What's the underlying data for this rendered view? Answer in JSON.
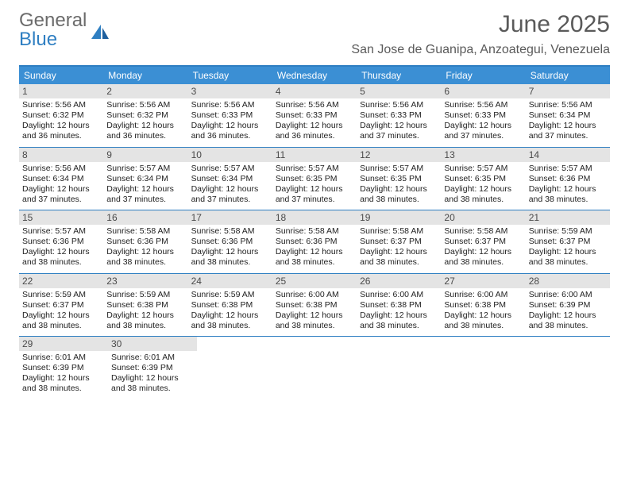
{
  "brand": {
    "top": "General",
    "bottom": "Blue"
  },
  "title": "June 2025",
  "location": "San Jose de Guanipa, Anzoategui, Venezuela",
  "colors": {
    "header_bg": "#3b8fd4",
    "border": "#2f7fc2",
    "daynum_bg": "#e4e4e4",
    "text": "#222222",
    "title_text": "#5a5a5a"
  },
  "weekdays": [
    "Sunday",
    "Monday",
    "Tuesday",
    "Wednesday",
    "Thursday",
    "Friday",
    "Saturday"
  ],
  "weeks": [
    [
      {
        "n": "1",
        "sr": "Sunrise: 5:56 AM",
        "ss": "Sunset: 6:32 PM",
        "d1": "Daylight: 12 hours",
        "d2": "and 36 minutes."
      },
      {
        "n": "2",
        "sr": "Sunrise: 5:56 AM",
        "ss": "Sunset: 6:32 PM",
        "d1": "Daylight: 12 hours",
        "d2": "and 36 minutes."
      },
      {
        "n": "3",
        "sr": "Sunrise: 5:56 AM",
        "ss": "Sunset: 6:33 PM",
        "d1": "Daylight: 12 hours",
        "d2": "and 36 minutes."
      },
      {
        "n": "4",
        "sr": "Sunrise: 5:56 AM",
        "ss": "Sunset: 6:33 PM",
        "d1": "Daylight: 12 hours",
        "d2": "and 36 minutes."
      },
      {
        "n": "5",
        "sr": "Sunrise: 5:56 AM",
        "ss": "Sunset: 6:33 PM",
        "d1": "Daylight: 12 hours",
        "d2": "and 37 minutes."
      },
      {
        "n": "6",
        "sr": "Sunrise: 5:56 AM",
        "ss": "Sunset: 6:33 PM",
        "d1": "Daylight: 12 hours",
        "d2": "and 37 minutes."
      },
      {
        "n": "7",
        "sr": "Sunrise: 5:56 AM",
        "ss": "Sunset: 6:34 PM",
        "d1": "Daylight: 12 hours",
        "d2": "and 37 minutes."
      }
    ],
    [
      {
        "n": "8",
        "sr": "Sunrise: 5:56 AM",
        "ss": "Sunset: 6:34 PM",
        "d1": "Daylight: 12 hours",
        "d2": "and 37 minutes."
      },
      {
        "n": "9",
        "sr": "Sunrise: 5:57 AM",
        "ss": "Sunset: 6:34 PM",
        "d1": "Daylight: 12 hours",
        "d2": "and 37 minutes."
      },
      {
        "n": "10",
        "sr": "Sunrise: 5:57 AM",
        "ss": "Sunset: 6:34 PM",
        "d1": "Daylight: 12 hours",
        "d2": "and 37 minutes."
      },
      {
        "n": "11",
        "sr": "Sunrise: 5:57 AM",
        "ss": "Sunset: 6:35 PM",
        "d1": "Daylight: 12 hours",
        "d2": "and 37 minutes."
      },
      {
        "n": "12",
        "sr": "Sunrise: 5:57 AM",
        "ss": "Sunset: 6:35 PM",
        "d1": "Daylight: 12 hours",
        "d2": "and 38 minutes."
      },
      {
        "n": "13",
        "sr": "Sunrise: 5:57 AM",
        "ss": "Sunset: 6:35 PM",
        "d1": "Daylight: 12 hours",
        "d2": "and 38 minutes."
      },
      {
        "n": "14",
        "sr": "Sunrise: 5:57 AM",
        "ss": "Sunset: 6:36 PM",
        "d1": "Daylight: 12 hours",
        "d2": "and 38 minutes."
      }
    ],
    [
      {
        "n": "15",
        "sr": "Sunrise: 5:57 AM",
        "ss": "Sunset: 6:36 PM",
        "d1": "Daylight: 12 hours",
        "d2": "and 38 minutes."
      },
      {
        "n": "16",
        "sr": "Sunrise: 5:58 AM",
        "ss": "Sunset: 6:36 PM",
        "d1": "Daylight: 12 hours",
        "d2": "and 38 minutes."
      },
      {
        "n": "17",
        "sr": "Sunrise: 5:58 AM",
        "ss": "Sunset: 6:36 PM",
        "d1": "Daylight: 12 hours",
        "d2": "and 38 minutes."
      },
      {
        "n": "18",
        "sr": "Sunrise: 5:58 AM",
        "ss": "Sunset: 6:36 PM",
        "d1": "Daylight: 12 hours",
        "d2": "and 38 minutes."
      },
      {
        "n": "19",
        "sr": "Sunrise: 5:58 AM",
        "ss": "Sunset: 6:37 PM",
        "d1": "Daylight: 12 hours",
        "d2": "and 38 minutes."
      },
      {
        "n": "20",
        "sr": "Sunrise: 5:58 AM",
        "ss": "Sunset: 6:37 PM",
        "d1": "Daylight: 12 hours",
        "d2": "and 38 minutes."
      },
      {
        "n": "21",
        "sr": "Sunrise: 5:59 AM",
        "ss": "Sunset: 6:37 PM",
        "d1": "Daylight: 12 hours",
        "d2": "and 38 minutes."
      }
    ],
    [
      {
        "n": "22",
        "sr": "Sunrise: 5:59 AM",
        "ss": "Sunset: 6:37 PM",
        "d1": "Daylight: 12 hours",
        "d2": "and 38 minutes."
      },
      {
        "n": "23",
        "sr": "Sunrise: 5:59 AM",
        "ss": "Sunset: 6:38 PM",
        "d1": "Daylight: 12 hours",
        "d2": "and 38 minutes."
      },
      {
        "n": "24",
        "sr": "Sunrise: 5:59 AM",
        "ss": "Sunset: 6:38 PM",
        "d1": "Daylight: 12 hours",
        "d2": "and 38 minutes."
      },
      {
        "n": "25",
        "sr": "Sunrise: 6:00 AM",
        "ss": "Sunset: 6:38 PM",
        "d1": "Daylight: 12 hours",
        "d2": "and 38 minutes."
      },
      {
        "n": "26",
        "sr": "Sunrise: 6:00 AM",
        "ss": "Sunset: 6:38 PM",
        "d1": "Daylight: 12 hours",
        "d2": "and 38 minutes."
      },
      {
        "n": "27",
        "sr": "Sunrise: 6:00 AM",
        "ss": "Sunset: 6:38 PM",
        "d1": "Daylight: 12 hours",
        "d2": "and 38 minutes."
      },
      {
        "n": "28",
        "sr": "Sunrise: 6:00 AM",
        "ss": "Sunset: 6:39 PM",
        "d1": "Daylight: 12 hours",
        "d2": "and 38 minutes."
      }
    ],
    [
      {
        "n": "29",
        "sr": "Sunrise: 6:01 AM",
        "ss": "Sunset: 6:39 PM",
        "d1": "Daylight: 12 hours",
        "d2": "and 38 minutes."
      },
      {
        "n": "30",
        "sr": "Sunrise: 6:01 AM",
        "ss": "Sunset: 6:39 PM",
        "d1": "Daylight: 12 hours",
        "d2": "and 38 minutes."
      },
      null,
      null,
      null,
      null,
      null
    ]
  ]
}
